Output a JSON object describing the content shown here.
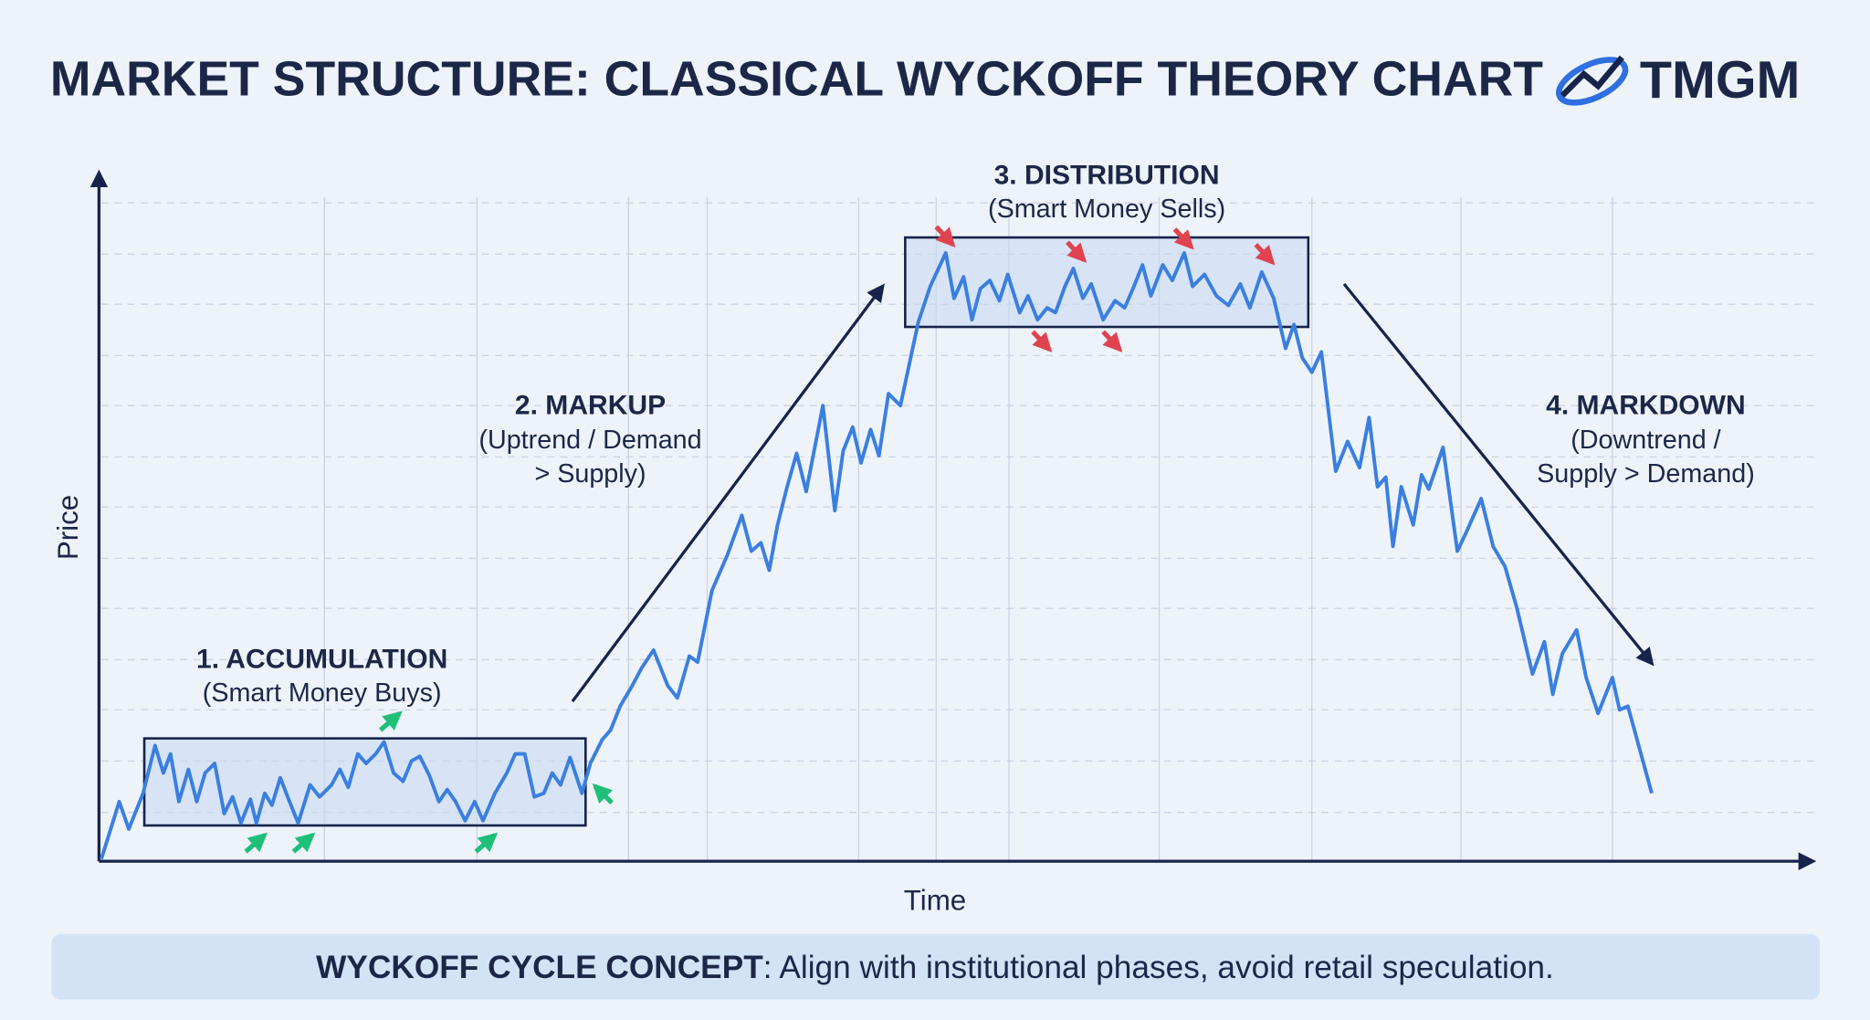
{
  "chart_data": {
    "type": "line",
    "title": "MARKET STRUCTURE: CLASSICAL WYCKOFF THEORY CHART",
    "brand": "TMGM",
    "xlabel": "Time",
    "ylabel": "Price",
    "phases": [
      {
        "name": "1. ACCUMULATION",
        "note": "(Smart Money Buys)"
      },
      {
        "name": "2. MARKUP",
        "note": [
          "(Uptrend / Demand",
          "> Supply)"
        ]
      },
      {
        "name": "3. DISTRIBUTION",
        "note": "(Smart Money Sells)"
      },
      {
        "name": "4. MARKDOWN",
        "note": [
          "(Downtrend /",
          "Supply > Demand)"
        ]
      }
    ],
    "footer": {
      "bold": "WYCKOFF CYCLE CONCEPT",
      "text": ": Align with institutional phases, avoid retail speculation."
    }
  }
}
